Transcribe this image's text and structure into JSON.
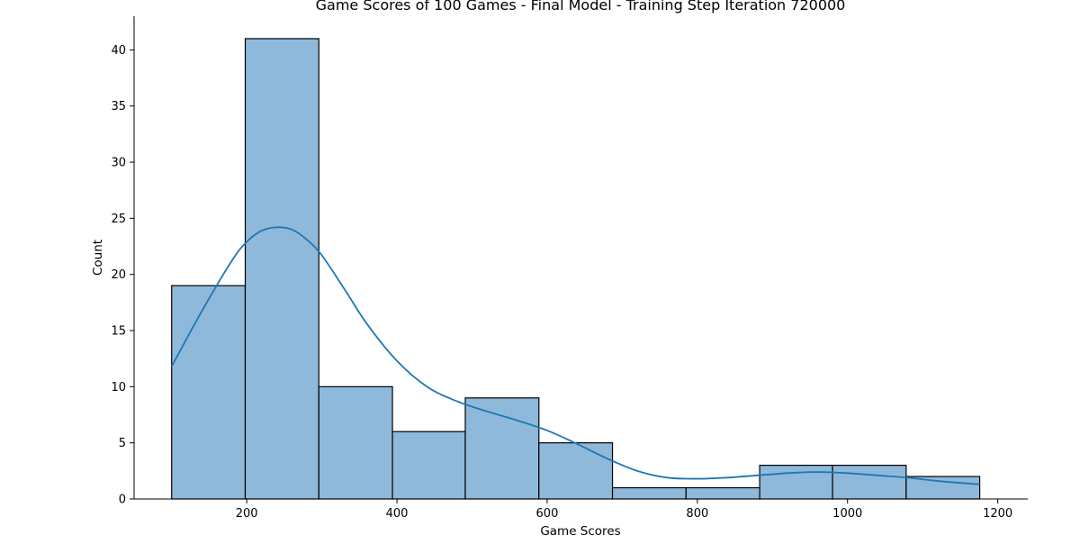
{
  "chart_data": {
    "type": "bar",
    "title": "Game Scores of 100 Games - Final Model - Training Step Iteration 720000",
    "xlabel": "Game Scores",
    "ylabel": "Count",
    "xlim": [
      50,
      1240
    ],
    "ylim": [
      0,
      43
    ],
    "x_ticks": [
      200,
      400,
      600,
      800,
      1000,
      1200
    ],
    "y_ticks": [
      0,
      5,
      10,
      15,
      20,
      25,
      30,
      35,
      40
    ],
    "bins": [
      {
        "start": 100,
        "end": 198,
        "count": 19
      },
      {
        "start": 198,
        "end": 296,
        "count": 41
      },
      {
        "start": 296,
        "end": 394,
        "count": 10
      },
      {
        "start": 394,
        "end": 491,
        "count": 6
      },
      {
        "start": 491,
        "end": 589,
        "count": 9
      },
      {
        "start": 589,
        "end": 687,
        "count": 5
      },
      {
        "start": 687,
        "end": 785,
        "count": 1
      },
      {
        "start": 785,
        "end": 883,
        "count": 1
      },
      {
        "start": 883,
        "end": 980,
        "count": 3
      },
      {
        "start": 980,
        "end": 1078,
        "count": 3
      },
      {
        "start": 1078,
        "end": 1176,
        "count": 2
      }
    ],
    "kde": {
      "x": [
        100,
        140,
        180,
        200,
        220,
        240,
        260,
        280,
        300,
        330,
        360,
        400,
        440,
        480,
        520,
        560,
        600,
        640,
        680,
        720,
        760,
        800,
        840,
        880,
        920,
        960,
        1000,
        1040,
        1080,
        1120,
        1176
      ],
      "y": [
        11.8,
        16.7,
        21.2,
        22.9,
        23.9,
        24.2,
        24.0,
        23.1,
        21.7,
        18.7,
        15.6,
        12.3,
        10.0,
        8.7,
        7.8,
        7.0,
        6.1,
        4.9,
        3.6,
        2.5,
        1.9,
        1.8,
        1.9,
        2.1,
        2.3,
        2.4,
        2.3,
        2.1,
        1.9,
        1.6,
        1.3
      ]
    },
    "grid": false,
    "colors": {
      "bar_fill": "#8fb9da",
      "bar_edge": "#000000",
      "kde_line": "#1f77b4",
      "axis": "#000000"
    }
  }
}
